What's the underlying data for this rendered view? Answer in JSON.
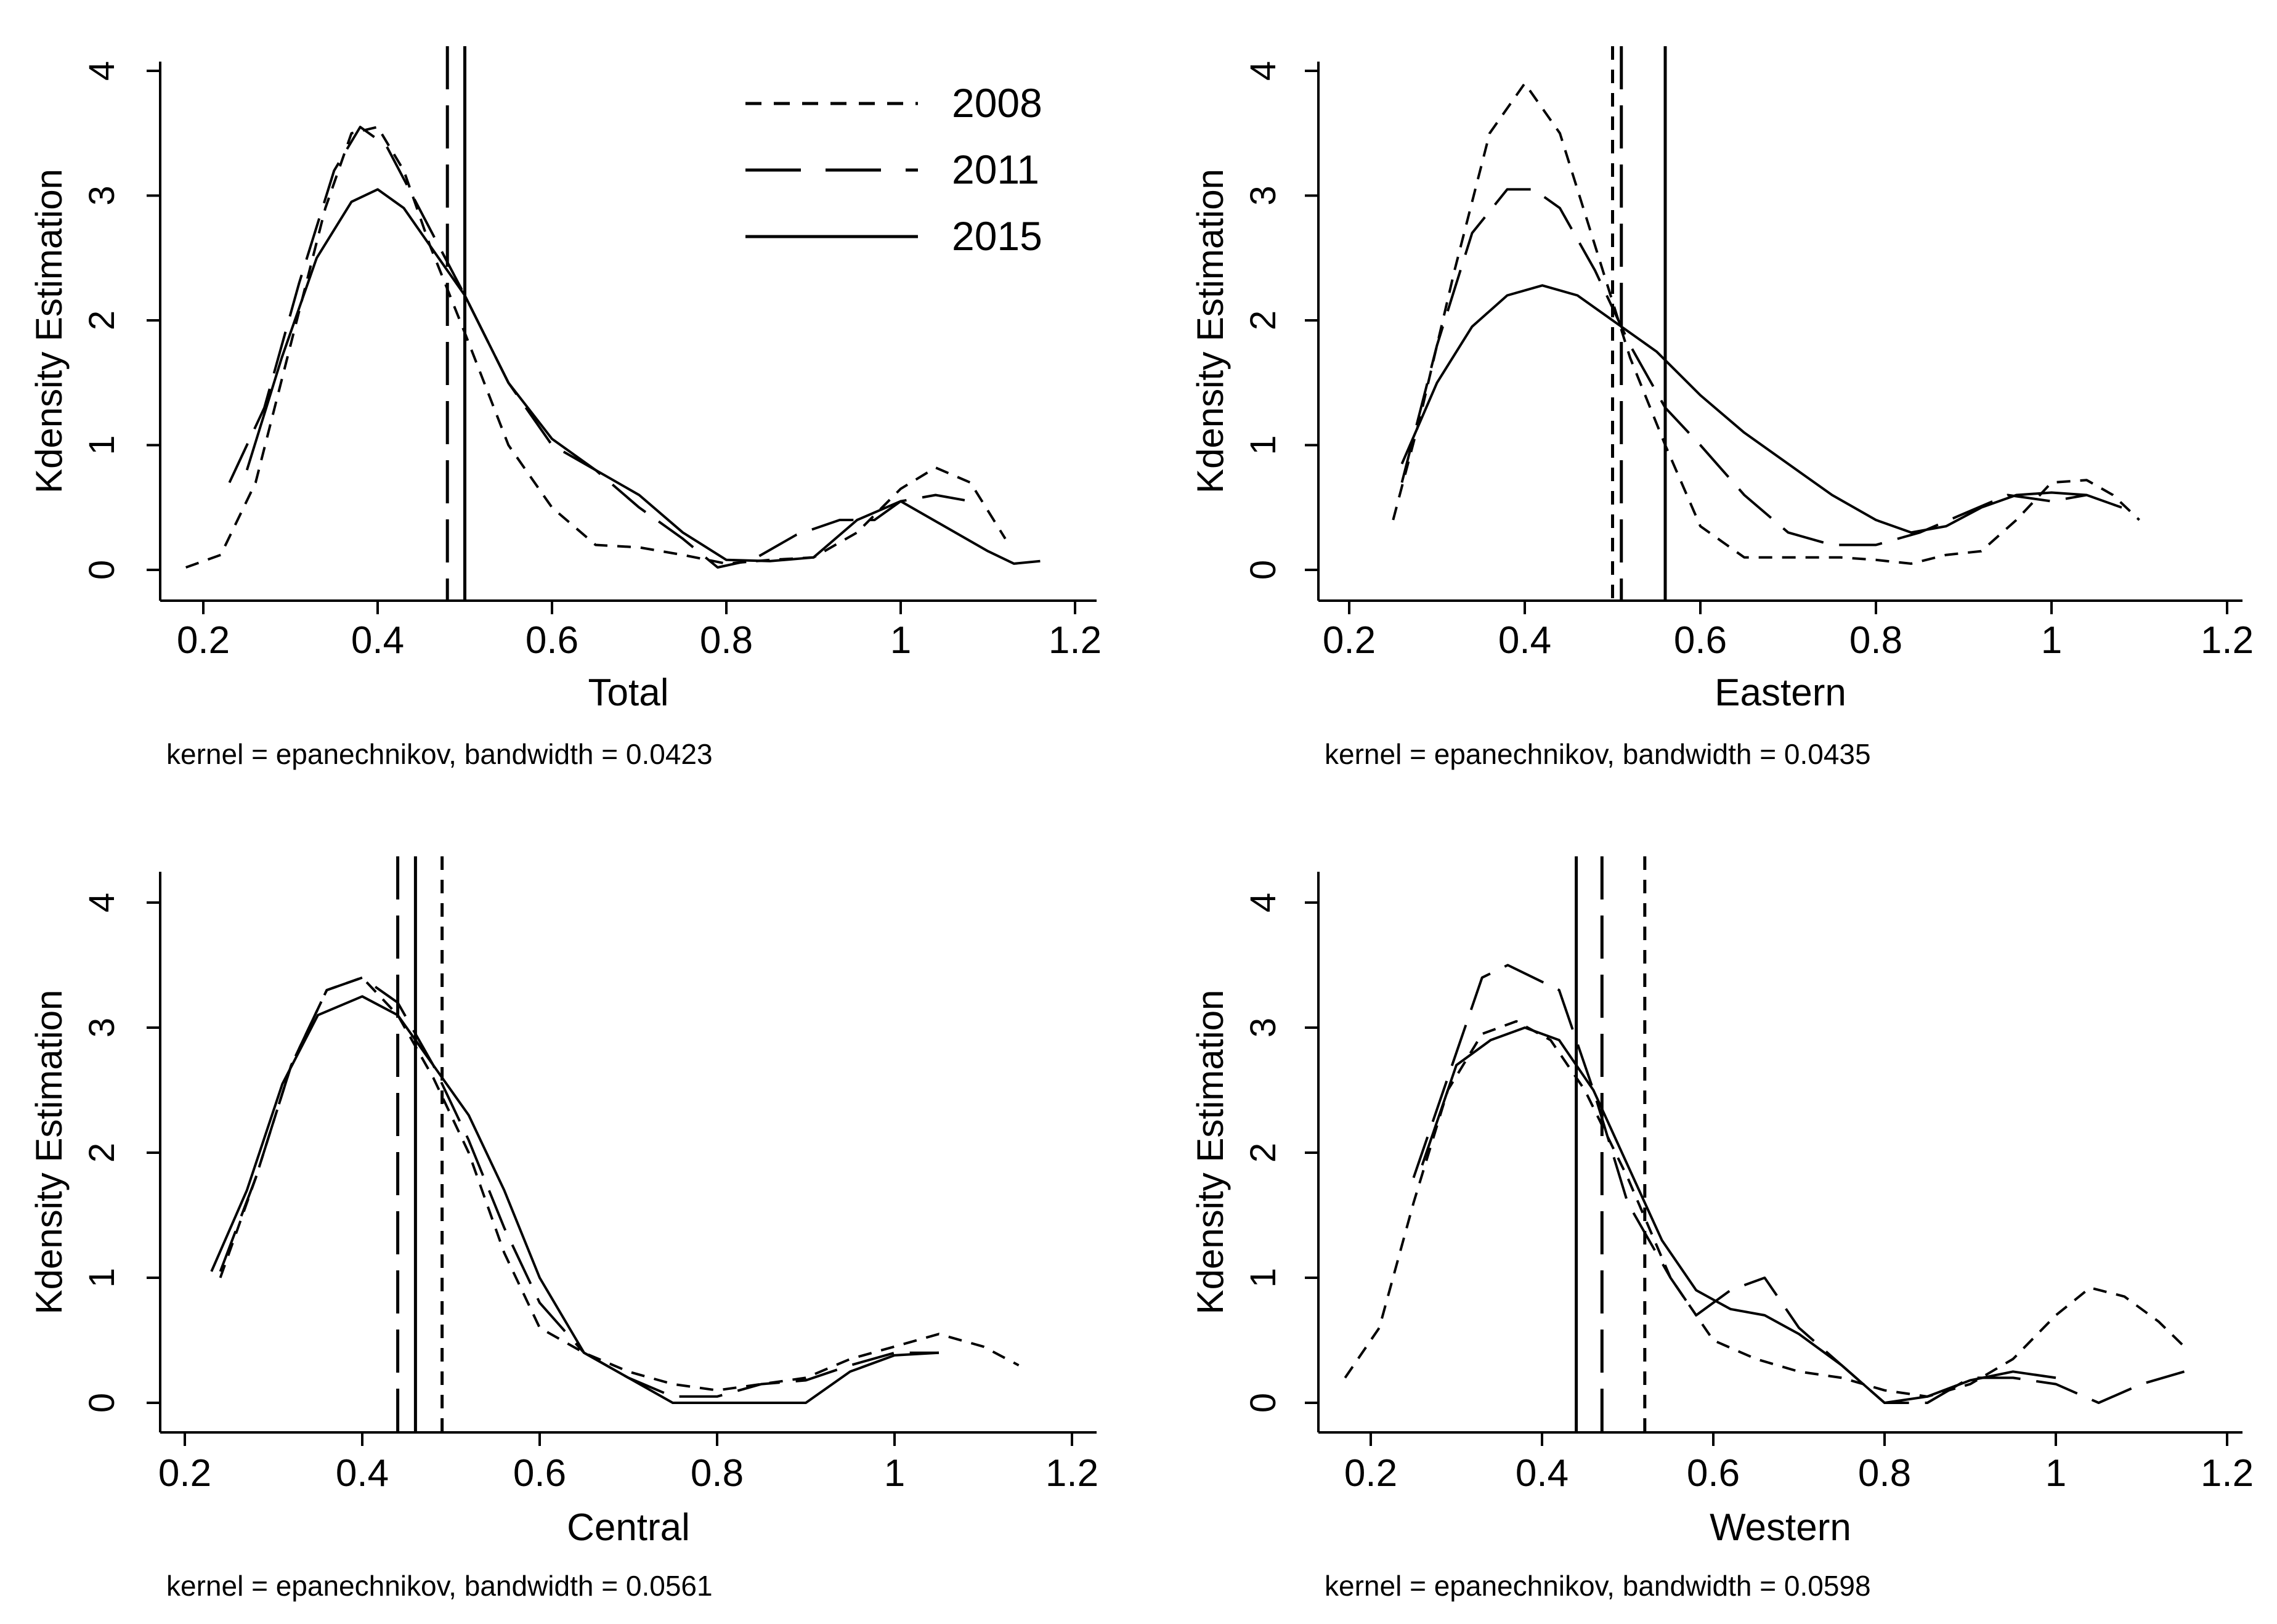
{
  "figure": {
    "legend": {
      "position": "top-right of first panel",
      "entries": [
        {
          "label": "2008",
          "style": "short-dash"
        },
        {
          "label": "2011",
          "style": "long-dash"
        },
        {
          "label": "2015",
          "style": "solid"
        }
      ]
    },
    "colors": {
      "line": "#000000",
      "background": "#ffffff"
    }
  },
  "chart_data": [
    {
      "type": "line",
      "panel": "top-left",
      "title": "",
      "xlabel": "Total",
      "ylabel": "Kdensity Estimation",
      "note": "kernel = epanechnikov, bandwidth = 0.0423",
      "xlim": [
        0.2,
        1.2
      ],
      "ylim": [
        0,
        4
      ],
      "xticks": [
        0.2,
        0.4,
        0.6,
        0.8,
        1,
        1.2
      ],
      "xtick_labels": [
        "0.2",
        "0.4",
        "0.6",
        "0.8",
        "1",
        "1.2"
      ],
      "yticks": [
        0,
        1,
        2,
        3,
        4
      ],
      "ytick_labels": [
        "0",
        "1",
        "2",
        "3",
        "4"
      ],
      "grid": false,
      "series": [
        {
          "name": "2008",
          "style": "short-dash",
          "x": [
            0.18,
            0.22,
            0.26,
            0.3,
            0.34,
            0.37,
            0.4,
            0.43,
            0.46,
            0.5,
            0.55,
            0.6,
            0.65,
            0.7,
            0.75,
            0.8,
            0.85,
            0.9,
            0.95,
            1.0,
            1.04,
            1.08,
            1.12
          ],
          "y": [
            0.02,
            0.12,
            0.7,
            1.8,
            2.9,
            3.5,
            3.55,
            3.2,
            2.6,
            1.9,
            1.0,
            0.5,
            0.2,
            0.18,
            0.12,
            0.05,
            0.08,
            0.1,
            0.3,
            0.65,
            0.82,
            0.7,
            0.25
          ],
          "vline": 0.5
        },
        {
          "name": "2011",
          "style": "long-dash",
          "x": [
            0.23,
            0.27,
            0.31,
            0.35,
            0.38,
            0.41,
            0.44,
            0.47,
            0.5,
            0.55,
            0.6,
            0.65,
            0.7,
            0.75,
            0.79,
            0.83,
            0.88,
            0.93,
            0.97,
            1.0,
            1.04,
            1.08
          ],
          "y": [
            0.7,
            1.3,
            2.3,
            3.2,
            3.55,
            3.4,
            3.0,
            2.6,
            2.2,
            1.5,
            1.0,
            0.8,
            0.5,
            0.25,
            0.02,
            0.08,
            0.28,
            0.4,
            0.4,
            0.55,
            0.6,
            0.55
          ],
          "vline": 0.48
        },
        {
          "name": "2015",
          "style": "solid",
          "x": [
            0.25,
            0.29,
            0.33,
            0.37,
            0.4,
            0.43,
            0.47,
            0.5,
            0.55,
            0.6,
            0.65,
            0.7,
            0.75,
            0.8,
            0.85,
            0.9,
            0.95,
            1.0,
            1.05,
            1.1,
            1.13,
            1.16
          ],
          "y": [
            0.8,
            1.7,
            2.5,
            2.95,
            3.05,
            2.9,
            2.5,
            2.2,
            1.5,
            1.05,
            0.8,
            0.6,
            0.3,
            0.08,
            0.07,
            0.1,
            0.4,
            0.55,
            0.35,
            0.15,
            0.05,
            0.07
          ],
          "vline": 0.5
        }
      ]
    },
    {
      "type": "line",
      "panel": "top-right",
      "title": "",
      "xlabel": "Eastern",
      "ylabel": "Kdensity Estimation",
      "note": "kernel = epanechnikov, bandwidth = 0.0435",
      "xlim": [
        0.2,
        1.2
      ],
      "ylim": [
        0,
        4
      ],
      "xticks": [
        0.2,
        0.4,
        0.6,
        0.8,
        1,
        1.2
      ],
      "xtick_labels": [
        "0.2",
        "0.4",
        "0.6",
        "0.8",
        "1",
        "1.2"
      ],
      "yticks": [
        0,
        1,
        2,
        3,
        4
      ],
      "ytick_labels": [
        "0",
        "1",
        "2",
        "3",
        "4"
      ],
      "grid": false,
      "series": [
        {
          "name": "2008",
          "style": "short-dash",
          "x": [
            0.25,
            0.28,
            0.32,
            0.36,
            0.4,
            0.44,
            0.48,
            0.52,
            0.56,
            0.6,
            0.65,
            0.7,
            0.76,
            0.8,
            0.84,
            0.88,
            0.92,
            0.96,
            1.0,
            1.04,
            1.07,
            1.1
          ],
          "y": [
            0.4,
            1.2,
            2.4,
            3.5,
            3.9,
            3.5,
            2.6,
            1.7,
            1.0,
            0.35,
            0.1,
            0.1,
            0.1,
            0.08,
            0.05,
            0.12,
            0.15,
            0.4,
            0.7,
            0.72,
            0.6,
            0.4
          ],
          "vline": 0.5
        },
        {
          "name": "2011",
          "style": "long-dash",
          "x": [
            0.26,
            0.3,
            0.34,
            0.38,
            0.41,
            0.44,
            0.48,
            0.52,
            0.56,
            0.6,
            0.65,
            0.7,
            0.75,
            0.8,
            0.85,
            0.9,
            0.95,
            1.0,
            1.04
          ],
          "y": [
            0.7,
            1.8,
            2.7,
            3.05,
            3.05,
            2.9,
            2.4,
            1.8,
            1.3,
            1.0,
            0.6,
            0.3,
            0.2,
            0.2,
            0.3,
            0.45,
            0.6,
            0.55,
            0.6
          ],
          "vline": 0.51
        },
        {
          "name": "2015",
          "style": "solid",
          "x": [
            0.26,
            0.3,
            0.34,
            0.38,
            0.42,
            0.46,
            0.5,
            0.55,
            0.6,
            0.65,
            0.7,
            0.75,
            0.8,
            0.84,
            0.88,
            0.92,
            0.96,
            1.0,
            1.04,
            1.08
          ],
          "y": [
            0.85,
            1.5,
            1.95,
            2.2,
            2.28,
            2.2,
            2.0,
            1.75,
            1.4,
            1.1,
            0.85,
            0.6,
            0.4,
            0.3,
            0.35,
            0.5,
            0.6,
            0.62,
            0.6,
            0.5
          ],
          "vline": 0.56
        }
      ]
    },
    {
      "type": "line",
      "panel": "bottom-left",
      "title": "",
      "xlabel": "Central",
      "ylabel": "Kdensity Estimation",
      "note": "kernel = epanechnikov, bandwidth = 0.0561",
      "xlim": [
        0.2,
        1.2
      ],
      "ylim": [
        0,
        4
      ],
      "xticks": [
        0.2,
        0.4,
        0.6,
        0.8,
        1,
        1.2
      ],
      "xtick_labels": [
        "0.2",
        "0.4",
        "0.6",
        "0.8",
        "1",
        "1.2"
      ],
      "yticks": [
        0,
        1,
        2,
        3,
        4
      ],
      "ytick_labels": [
        "0",
        "1",
        "2",
        "3",
        "4"
      ],
      "grid": false,
      "series": [
        {
          "name": "2008",
          "style": "short-dash",
          "x": [
            0.24,
            0.28,
            0.32,
            0.36,
            0.4,
            0.44,
            0.48,
            0.52,
            0.56,
            0.6,
            0.65,
            0.7,
            0.75,
            0.8,
            0.85,
            0.9,
            0.95,
            1.0,
            1.05,
            1.1,
            1.14
          ],
          "y": [
            1.0,
            1.8,
            2.7,
            3.3,
            3.4,
            3.1,
            2.6,
            2.0,
            1.2,
            0.6,
            0.4,
            0.25,
            0.15,
            0.1,
            0.15,
            0.2,
            0.35,
            0.45,
            0.55,
            0.45,
            0.3
          ],
          "vline": 0.49
        },
        {
          "name": "2011",
          "style": "long-dash",
          "x": [
            0.24,
            0.28,
            0.32,
            0.36,
            0.4,
            0.44,
            0.48,
            0.52,
            0.56,
            0.6,
            0.65,
            0.7,
            0.75,
            0.8,
            0.85,
            0.9,
            0.95,
            1.0,
            1.05
          ],
          "y": [
            1.05,
            1.8,
            2.7,
            3.3,
            3.4,
            3.2,
            2.7,
            2.1,
            1.4,
            0.8,
            0.4,
            0.2,
            0.05,
            0.05,
            0.15,
            0.18,
            0.3,
            0.4,
            0.4
          ],
          "vline": 0.44
        },
        {
          "name": "2015",
          "style": "solid",
          "x": [
            0.23,
            0.27,
            0.31,
            0.35,
            0.4,
            0.44,
            0.48,
            0.52,
            0.56,
            0.6,
            0.65,
            0.7,
            0.75,
            0.8,
            0.85,
            0.9,
            0.95,
            1.0,
            1.05
          ],
          "y": [
            1.05,
            1.7,
            2.55,
            3.1,
            3.25,
            3.1,
            2.7,
            2.3,
            1.7,
            1.0,
            0.4,
            0.2,
            0.0,
            0.0,
            0.0,
            0.0,
            0.25,
            0.38,
            0.4
          ],
          "vline": 0.46
        }
      ]
    },
    {
      "type": "line",
      "panel": "bottom-right",
      "title": "",
      "xlabel": "Western",
      "ylabel": "Kdensity Estimation",
      "note": "kernel = epanechnikov, bandwidth = 0.0598",
      "xlim": [
        0.2,
        1.2
      ],
      "ylim": [
        0,
        4
      ],
      "xticks": [
        0.2,
        0.4,
        0.6,
        0.8,
        1,
        1.2
      ],
      "xtick_labels": [
        "0.2",
        "0.4",
        "0.6",
        "0.8",
        "1",
        "1.2"
      ],
      "yticks": [
        0,
        1,
        2,
        3,
        4
      ],
      "ytick_labels": [
        "0",
        "1",
        "2",
        "3",
        "4"
      ],
      "grid": false,
      "series": [
        {
          "name": "2008",
          "style": "short-dash",
          "x": [
            0.17,
            0.21,
            0.25,
            0.29,
            0.33,
            0.37,
            0.41,
            0.45,
            0.5,
            0.55,
            0.6,
            0.65,
            0.7,
            0.75,
            0.8,
            0.85,
            0.9,
            0.95,
            1.0,
            1.04,
            1.08,
            1.12,
            1.15
          ],
          "y": [
            0.2,
            0.6,
            1.6,
            2.5,
            2.95,
            3.05,
            2.9,
            2.5,
            1.8,
            1.0,
            0.5,
            0.35,
            0.25,
            0.2,
            0.1,
            0.05,
            0.15,
            0.35,
            0.7,
            0.92,
            0.85,
            0.65,
            0.45
          ],
          "vline": 0.52
        },
        {
          "name": "2011",
          "style": "long-dash",
          "x": [
            0.25,
            0.29,
            0.33,
            0.36,
            0.39,
            0.42,
            0.46,
            0.5,
            0.55,
            0.58,
            0.62,
            0.66,
            0.7,
            0.75,
            0.8,
            0.85,
            0.9,
            0.95,
            1.0,
            1.05,
            1.1,
            1.15
          ],
          "y": [
            1.8,
            2.6,
            3.4,
            3.5,
            3.4,
            3.3,
            2.5,
            1.6,
            1.0,
            0.7,
            0.9,
            1.0,
            0.6,
            0.3,
            0.0,
            0.0,
            0.2,
            0.2,
            0.15,
            0.0,
            0.15,
            0.25
          ],
          "vline": 0.47
        },
        {
          "name": "2015",
          "style": "solid",
          "x": [
            0.26,
            0.3,
            0.34,
            0.38,
            0.42,
            0.46,
            0.5,
            0.54,
            0.58,
            0.62,
            0.66,
            0.7,
            0.75,
            0.8,
            0.85,
            0.9,
            0.95,
            1.0
          ],
          "y": [
            1.9,
            2.7,
            2.9,
            3.0,
            2.9,
            2.5,
            1.9,
            1.3,
            0.9,
            0.75,
            0.7,
            0.55,
            0.3,
            0.0,
            0.05,
            0.18,
            0.25,
            0.2
          ],
          "vline": 0.44
        }
      ]
    }
  ]
}
